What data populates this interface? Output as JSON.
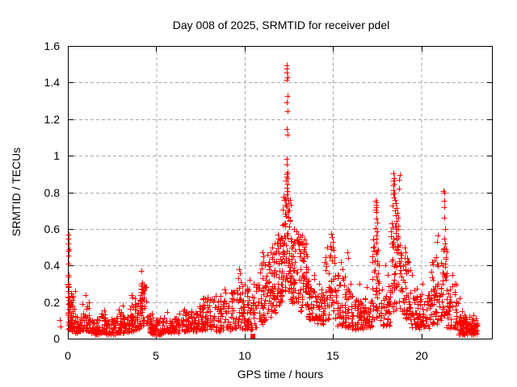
{
  "chart_data": {
    "type": "scatter",
    "title": "Day 008 of 2025, SRMTID for receiver pdel",
    "xlabel": "GPS time / hours",
    "ylabel": "SRMTID / TECUs",
    "xlim": [
      0,
      24
    ],
    "ylim": [
      0,
      1.6
    ],
    "xticks": {
      "values": [
        0,
        5,
        10,
        15,
        20
      ],
      "labels": [
        "0",
        "5",
        "10",
        "15",
        "20"
      ]
    },
    "yticks": {
      "values": [
        0,
        0.2,
        0.4,
        0.6,
        0.8,
        1.0,
        1.2,
        1.4,
        1.6
      ],
      "labels": [
        "0",
        "0.2",
        "0.4",
        "0.6",
        "0.8",
        "1",
        "1.2",
        "1.4",
        "1.6"
      ]
    },
    "grid": true,
    "grid_style": "dashed",
    "grid_color": "#a8a8a8",
    "border_color": "#000000",
    "legend": "none",
    "seed": 20250108,
    "series": [
      {
        "name": "srmtid-plus-markers",
        "marker": "plus",
        "color": "#ff0000",
        "cloud_segments": [
          [
            0.0,
            0.18,
            22,
            0.04,
            0.3,
            1.2
          ],
          [
            0.05,
            0.4,
            30,
            0.04,
            0.26,
            1.5
          ],
          [
            0.4,
            0.75,
            28,
            0.03,
            0.13,
            1.4
          ],
          [
            0.75,
            1.25,
            40,
            0.04,
            0.21,
            1.6
          ],
          [
            1.25,
            1.75,
            38,
            0.02,
            0.11,
            1.5
          ],
          [
            1.75,
            2.2,
            38,
            0.03,
            0.14,
            1.7
          ],
          [
            2.2,
            2.7,
            40,
            0.02,
            0.11,
            1.5
          ],
          [
            2.7,
            3.15,
            38,
            0.03,
            0.15,
            1.7
          ],
          [
            3.15,
            3.5,
            28,
            0.03,
            0.12,
            1.5
          ],
          [
            3.5,
            3.8,
            26,
            0.04,
            0.22,
            1.6
          ],
          [
            3.8,
            4.05,
            24,
            0.05,
            0.2,
            1.4
          ],
          [
            4.05,
            4.45,
            45,
            0.07,
            0.3,
            1.3
          ],
          [
            4.45,
            4.8,
            28,
            0.03,
            0.14,
            1.5
          ],
          [
            4.8,
            5.4,
            42,
            0.02,
            0.11,
            1.5
          ],
          [
            5.4,
            6.3,
            58,
            0.03,
            0.12,
            1.6
          ],
          [
            6.3,
            7.1,
            55,
            0.04,
            0.15,
            1.6
          ],
          [
            7.1,
            7.6,
            40,
            0.04,
            0.17,
            1.6
          ],
          [
            7.6,
            8.3,
            55,
            0.05,
            0.22,
            1.6
          ],
          [
            8.3,
            9.2,
            62,
            0.04,
            0.24,
            1.7
          ],
          [
            9.2,
            9.95,
            55,
            0.05,
            0.3,
            1.5
          ],
          [
            9.95,
            10.8,
            62,
            0.05,
            0.3,
            1.6
          ],
          [
            10.8,
            11.3,
            45,
            0.08,
            0.42,
            1.4
          ],
          [
            11.3,
            11.8,
            52,
            0.12,
            0.48,
            1.2
          ],
          [
            11.8,
            12.15,
            45,
            0.18,
            0.55,
            1.1
          ],
          [
            12.15,
            12.62,
            60,
            0.25,
            0.78,
            1.0
          ],
          [
            12.62,
            13.1,
            52,
            0.18,
            0.55,
            1.1
          ],
          [
            13.1,
            13.6,
            52,
            0.15,
            0.52,
            1.2
          ],
          [
            13.6,
            14.1,
            45,
            0.1,
            0.33,
            1.4
          ],
          [
            14.1,
            14.55,
            38,
            0.08,
            0.28,
            1.4
          ],
          [
            14.55,
            15.15,
            48,
            0.1,
            0.5,
            1.3
          ],
          [
            15.15,
            15.7,
            42,
            0.07,
            0.35,
            1.4
          ],
          [
            15.7,
            16.1,
            34,
            0.06,
            0.3,
            1.5
          ],
          [
            16.1,
            16.7,
            44,
            0.05,
            0.22,
            1.5
          ],
          [
            16.7,
            17.2,
            40,
            0.06,
            0.24,
            1.5
          ],
          [
            17.2,
            17.7,
            48,
            0.1,
            0.55,
            1.2
          ],
          [
            17.7,
            18.25,
            44,
            0.07,
            0.3,
            1.4
          ],
          [
            18.25,
            18.9,
            68,
            0.15,
            0.62,
            1.1
          ],
          [
            18.9,
            19.4,
            44,
            0.1,
            0.45,
            1.3
          ],
          [
            19.4,
            19.9,
            38,
            0.06,
            0.3,
            1.5
          ],
          [
            19.9,
            20.55,
            48,
            0.05,
            0.25,
            1.5
          ],
          [
            20.55,
            21.1,
            48,
            0.08,
            0.45,
            1.3
          ],
          [
            21.1,
            21.45,
            40,
            0.1,
            0.5,
            1.2
          ],
          [
            21.45,
            22.1,
            48,
            0.05,
            0.3,
            1.5
          ],
          [
            22.1,
            23.2,
            85,
            0.02,
            0.13,
            1.5
          ],
          [
            22.45,
            23.1,
            30,
            0.03,
            0.09,
            1.2
          ]
        ],
        "notable_points": [
          [
            0.03,
            0.57
          ],
          [
            0.06,
            0.545
          ],
          [
            0.04,
            0.52
          ],
          [
            0.07,
            0.49
          ],
          [
            0.03,
            0.48
          ],
          [
            0.05,
            0.455
          ],
          [
            0.04,
            0.41
          ],
          [
            0.06,
            0.35
          ],
          [
            0.03,
            0.34
          ],
          [
            0.05,
            0.3
          ],
          [
            0.04,
            0.285
          ],
          [
            0.06,
            0.26
          ],
          [
            0.03,
            0.225
          ],
          [
            0.07,
            0.21
          ],
          [
            0.05,
            0.19
          ],
          [
            -0.45,
            0.1
          ],
          [
            -0.42,
            0.065
          ],
          [
            1.02,
            0.24
          ],
          [
            2.05,
            0.155
          ],
          [
            2.9,
            0.16
          ],
          [
            3.1,
            0.18
          ],
          [
            3.62,
            0.24
          ],
          [
            3.67,
            0.225
          ],
          [
            4.17,
            0.37
          ],
          [
            4.2,
            0.305
          ],
          [
            4.22,
            0.295
          ],
          [
            4.19,
            0.27
          ],
          [
            4.24,
            0.255
          ],
          [
            5.6,
            0.145
          ],
          [
            6.6,
            0.16
          ],
          [
            7.0,
            0.145
          ],
          [
            7.45,
            0.175
          ],
          [
            7.9,
            0.225
          ],
          [
            8.15,
            0.21
          ],
          [
            8.85,
            0.27
          ],
          [
            8.9,
            0.25
          ],
          [
            9.3,
            0.25
          ],
          [
            9.68,
            0.38
          ],
          [
            9.72,
            0.355
          ],
          [
            9.65,
            0.33
          ],
          [
            9.78,
            0.31
          ],
          [
            10.28,
            0.32
          ],
          [
            10.5,
            0.3
          ],
          [
            10.65,
            0.28
          ],
          [
            11.02,
            0.47
          ],
          [
            11.06,
            0.45
          ],
          [
            11.04,
            0.42
          ],
          [
            10.95,
            0.4
          ],
          [
            11.55,
            0.5
          ],
          [
            11.7,
            0.52
          ],
          [
            11.88,
            0.57
          ],
          [
            11.92,
            0.545
          ],
          [
            11.85,
            0.52
          ],
          [
            12.05,
            0.55
          ],
          [
            12.38,
            1.495
          ],
          [
            12.41,
            1.475
          ],
          [
            12.39,
            1.455
          ],
          [
            12.42,
            1.43
          ],
          [
            12.4,
            1.415
          ],
          [
            12.42,
            1.325
          ],
          [
            12.4,
            1.29
          ],
          [
            12.43,
            1.245
          ],
          [
            12.39,
            1.145
          ],
          [
            12.42,
            1.115
          ],
          [
            12.37,
            0.985
          ],
          [
            12.41,
            0.95
          ],
          [
            12.43,
            0.91
          ],
          [
            12.38,
            0.9
          ],
          [
            12.4,
            0.885
          ],
          [
            12.44,
            0.875
          ],
          [
            12.36,
            0.862
          ],
          [
            12.42,
            0.848
          ],
          [
            12.39,
            0.826
          ],
          [
            12.45,
            0.806
          ],
          [
            12.41,
            0.79
          ],
          [
            12.31,
            0.765
          ],
          [
            12.48,
            0.742
          ],
          [
            12.34,
            0.722
          ],
          [
            12.51,
            0.702
          ],
          [
            12.29,
            0.682
          ],
          [
            12.46,
            0.663
          ],
          [
            12.56,
            0.645
          ],
          [
            12.26,
            0.628
          ],
          [
            12.53,
            0.612
          ],
          [
            12.8,
            0.6
          ],
          [
            12.95,
            0.585
          ],
          [
            13.05,
            0.575
          ],
          [
            13.15,
            0.555
          ],
          [
            13.27,
            0.565
          ],
          [
            13.38,
            0.54
          ],
          [
            13.5,
            0.52
          ],
          [
            13.95,
            0.35
          ],
          [
            14.2,
            0.3
          ],
          [
            14.9,
            0.575
          ],
          [
            14.95,
            0.555
          ],
          [
            15.0,
            0.53
          ],
          [
            14.86,
            0.505
          ],
          [
            15.05,
            0.485
          ],
          [
            15.45,
            0.42
          ],
          [
            15.55,
            0.38
          ],
          [
            15.82,
            0.47
          ],
          [
            15.87,
            0.44
          ],
          [
            16.5,
            0.3
          ],
          [
            16.9,
            0.28
          ],
          [
            17.42,
            0.755
          ],
          [
            17.46,
            0.745
          ],
          [
            17.44,
            0.73
          ],
          [
            17.48,
            0.718
          ],
          [
            17.43,
            0.706
          ],
          [
            17.47,
            0.694
          ],
          [
            17.45,
            0.655
          ],
          [
            17.5,
            0.635
          ],
          [
            17.41,
            0.606
          ],
          [
            17.49,
            0.585
          ],
          [
            17.44,
            0.565
          ],
          [
            17.95,
            0.4
          ],
          [
            18.1,
            0.35
          ],
          [
            18.42,
            0.905
          ],
          [
            18.78,
            0.895
          ],
          [
            18.45,
            0.878
          ],
          [
            18.74,
            0.868
          ],
          [
            18.4,
            0.862
          ],
          [
            18.47,
            0.846
          ],
          [
            18.43,
            0.838
          ],
          [
            18.76,
            0.82
          ],
          [
            18.41,
            0.81
          ],
          [
            18.46,
            0.8
          ],
          [
            18.44,
            0.787
          ],
          [
            18.48,
            0.77
          ],
          [
            18.5,
            0.756
          ],
          [
            18.55,
            0.74
          ],
          [
            18.38,
            0.728
          ],
          [
            18.6,
            0.716
          ],
          [
            18.52,
            0.7
          ],
          [
            18.65,
            0.688
          ],
          [
            18.57,
            0.674
          ],
          [
            18.7,
            0.66
          ],
          [
            18.62,
            0.645
          ],
          [
            18.35,
            0.63
          ],
          [
            18.55,
            0.615
          ],
          [
            18.68,
            0.6
          ],
          [
            19.08,
            0.5
          ],
          [
            19.12,
            0.47
          ],
          [
            19.2,
            0.44
          ],
          [
            19.48,
            0.35
          ],
          [
            20.08,
            0.3
          ],
          [
            20.88,
            0.53
          ],
          [
            20.92,
            0.565
          ],
          [
            21.26,
            0.805
          ],
          [
            21.31,
            0.8
          ],
          [
            21.29,
            0.755
          ],
          [
            21.32,
            0.72
          ],
          [
            21.28,
            0.66
          ],
          [
            21.33,
            0.6
          ],
          [
            21.3,
            0.545
          ],
          [
            21.35,
            0.52
          ],
          [
            21.27,
            0.49
          ],
          [
            21.78,
            0.35
          ],
          [
            21.9,
            0.3
          ],
          [
            22.18,
            0.22
          ],
          [
            22.3,
            0.15
          ]
        ]
      },
      {
        "name": "flagged-square-markers",
        "marker": "filled-square",
        "color": "#ff0000",
        "points": [
          [
            10.45,
            0.012
          ],
          [
            13.18,
            0.52
          ]
        ]
      }
    ]
  }
}
